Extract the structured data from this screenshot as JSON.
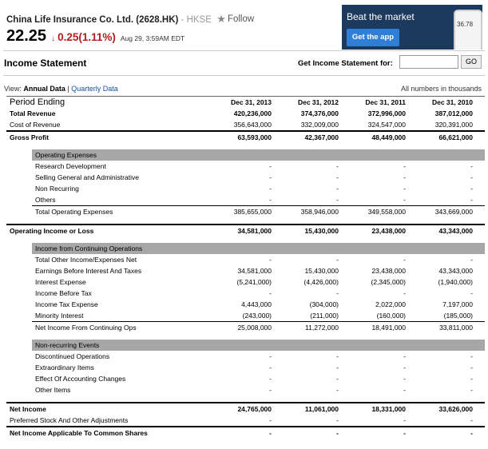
{
  "header": {
    "company": "China Life Insurance Co. Ltd. (2628.HK)",
    "exchange": " - HKSE",
    "follow": "Follow",
    "price": "22.25",
    "change": "0.25(1.11%)",
    "time": "Aug 29, 3:59AM EDT"
  },
  "ad": {
    "title": "Beat the market",
    "button": "Get the app",
    "phone_value": "36.78"
  },
  "titlebar": {
    "title": "Income Statement",
    "get_label": "Get Income Statement for:",
    "go": "GO"
  },
  "view": {
    "prefix": "View: ",
    "annual": "Annual Data",
    "sep": " | ",
    "quarterly": "Quarterly Data",
    "units": "All numbers in thousands"
  },
  "colors": {
    "negative": "#b31d1d",
    "section_bg": "#a7a7a7",
    "ad_bg": "#1c3a5e",
    "ad_button": "#2f7fd6"
  },
  "table": {
    "period_label": "Period Ending",
    "periods": [
      "Dec 31, 2013",
      "Dec 31, 2012",
      "Dec 31, 2011",
      "Dec 31, 2010"
    ],
    "total_revenue": {
      "label": "Total Revenue",
      "values": [
        "420,236,000",
        "374,376,000",
        "372,996,000",
        "387,012,000"
      ]
    },
    "cost_of_revenue": {
      "label": "Cost of Revenue",
      "values": [
        "356,643,000",
        "332,009,000",
        "324,547,000",
        "320,391,000"
      ]
    },
    "gross_profit": {
      "label": "Gross Profit",
      "values": [
        "63,593,000",
        "42,367,000",
        "48,449,000",
        "66,621,000"
      ]
    },
    "opex_header": "Operating Expenses",
    "research": {
      "label": "Research Development",
      "values": [
        "-",
        "-",
        "-",
        "-"
      ]
    },
    "sga": {
      "label": "Selling General and Administrative",
      "values": [
        "-",
        "-",
        "-",
        "-"
      ]
    },
    "non_recurring": {
      "label": "Non Recurring",
      "values": [
        "-",
        "-",
        "-",
        "-"
      ]
    },
    "others": {
      "label": "Others",
      "values": [
        "-",
        "-",
        "-",
        "-"
      ]
    },
    "total_opex": {
      "label": "Total Operating Expenses",
      "values": [
        "385,655,000",
        "358,946,000",
        "349,558,000",
        "343,669,000"
      ]
    },
    "operating_income": {
      "label": "Operating Income or Loss",
      "values": [
        "34,581,000",
        "15,430,000",
        "23,438,000",
        "43,343,000"
      ]
    },
    "cont_header": "Income from Continuing Operations",
    "total_other": {
      "label": "Total Other Income/Expenses Net",
      "values": [
        "-",
        "-",
        "-",
        "-"
      ]
    },
    "ebit": {
      "label": "Earnings Before Interest And Taxes",
      "values": [
        "34,581,000",
        "15,430,000",
        "23,438,000",
        "43,343,000"
      ]
    },
    "interest_expense": {
      "label": "Interest Expense",
      "values": [
        "(5,241,000)",
        "(4,426,000)",
        "(2,345,000)",
        "(1,940,000)"
      ]
    },
    "income_before_tax": {
      "label": "Income Before Tax",
      "values": [
        "-",
        "-",
        "-",
        "-"
      ]
    },
    "income_tax": {
      "label": "Income Tax Expense",
      "values": [
        "4,443,000",
        "(304,000)",
        "2,022,000",
        "7,197,000"
      ]
    },
    "minority": {
      "label": "Minority Interest",
      "values": [
        "(243,000)",
        "(211,000)",
        "(160,000)",
        "(185,000)"
      ]
    },
    "net_cont": {
      "label": "Net Income From Continuing Ops",
      "values": [
        "25,008,000",
        "11,272,000",
        "18,491,000",
        "33,811,000"
      ]
    },
    "nonrec_header": "Non-recurring Events",
    "discontinued": {
      "label": "Discontinued Operations",
      "values": [
        "-",
        "-",
        "-",
        "-"
      ]
    },
    "extraordinary": {
      "label": "Extraordinary Items",
      "values": [
        "-",
        "-",
        "-",
        "-"
      ]
    },
    "accounting": {
      "label": "Effect Of Accounting Changes",
      "values": [
        "-",
        "-",
        "-",
        "-"
      ]
    },
    "other_items": {
      "label": "Other Items",
      "values": [
        "-",
        "-",
        "-",
        "-"
      ]
    },
    "net_income": {
      "label": "Net Income",
      "values": [
        "24,765,000",
        "11,061,000",
        "18,331,000",
        "33,626,000"
      ]
    },
    "preferred": {
      "label": "Preferred Stock And Other Adjustments",
      "values": [
        "-",
        "-",
        "-",
        "-"
      ]
    },
    "common": {
      "label": "Net Income Applicable To Common Shares",
      "values": [
        "-",
        "-",
        "-",
        "-"
      ]
    }
  }
}
